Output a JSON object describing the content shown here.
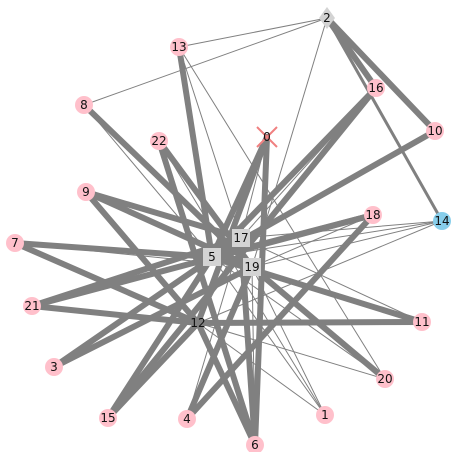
{
  "graph": {
    "nodes": [
      {
        "id": "0",
        "label": "0",
        "shape": "x-marker",
        "color": "#f08080"
      },
      {
        "id": "1",
        "label": "1",
        "shape": "circle",
        "color": "#ffc0cb"
      },
      {
        "id": "2",
        "label": "2",
        "shape": "diamond",
        "color": "#d3d3d3"
      },
      {
        "id": "3",
        "label": "3",
        "shape": "circle",
        "color": "#ffc0cb"
      },
      {
        "id": "4",
        "label": "4",
        "shape": "circle",
        "color": "#ffc0cb"
      },
      {
        "id": "5",
        "label": "5",
        "shape": "square",
        "color": "#d3d3d3"
      },
      {
        "id": "6",
        "label": "6",
        "shape": "circle",
        "color": "#ffc0cb"
      },
      {
        "id": "7",
        "label": "7",
        "shape": "circle",
        "color": "#ffc0cb"
      },
      {
        "id": "8",
        "label": "8",
        "shape": "circle",
        "color": "#ffc0cb"
      },
      {
        "id": "9",
        "label": "9",
        "shape": "circle",
        "color": "#ffc0cb"
      },
      {
        "id": "10",
        "label": "10",
        "shape": "circle",
        "color": "#ffc0cb"
      },
      {
        "id": "11",
        "label": "11",
        "shape": "circle",
        "color": "#ffc0cb"
      },
      {
        "id": "12",
        "label": "12",
        "shape": "none",
        "color": "#d3d3d3"
      },
      {
        "id": "13",
        "label": "13",
        "shape": "circle",
        "color": "#ffc0cb"
      },
      {
        "id": "14",
        "label": "14",
        "shape": "circle",
        "color": "#87ceeb"
      },
      {
        "id": "15",
        "label": "15",
        "shape": "circle",
        "color": "#ffc0cb"
      },
      {
        "id": "16",
        "label": "16",
        "shape": "circle",
        "color": "#ffc0cb"
      },
      {
        "id": "17",
        "label": "17",
        "shape": "square",
        "color": "#d3d3d3"
      },
      {
        "id": "18",
        "label": "18",
        "shape": "circle",
        "color": "#ffc0cb"
      },
      {
        "id": "19",
        "label": "19",
        "shape": "square",
        "color": "#d3d3d3"
      },
      {
        "id": "20",
        "label": "20",
        "shape": "circle",
        "color": "#ffc0cb"
      },
      {
        "id": "21",
        "label": "21",
        "shape": "circle",
        "color": "#ffc0cb"
      },
      {
        "id": "22",
        "label": "22",
        "shape": "circle",
        "color": "#ffc0cb"
      }
    ],
    "edges": [
      {
        "source": "2",
        "target": "16",
        "weight": "heavy"
      },
      {
        "source": "2",
        "target": "10",
        "weight": "heavy"
      },
      {
        "source": "2",
        "target": "14",
        "weight": "medium"
      },
      {
        "source": "2",
        "target": "13",
        "weight": "light"
      },
      {
        "source": "2",
        "target": "8",
        "weight": "light"
      },
      {
        "source": "2",
        "target": "19",
        "weight": "light"
      },
      {
        "source": "13",
        "target": "5",
        "weight": "heavy"
      },
      {
        "source": "13",
        "target": "17",
        "weight": "light"
      },
      {
        "source": "13",
        "target": "20",
        "weight": "light"
      },
      {
        "source": "8",
        "target": "19",
        "weight": "heavy"
      },
      {
        "source": "8",
        "target": "5",
        "weight": "light"
      },
      {
        "source": "22",
        "target": "19",
        "weight": "heavy"
      },
      {
        "source": "22",
        "target": "6",
        "weight": "heavy"
      },
      {
        "source": "22",
        "target": "1",
        "weight": "light"
      },
      {
        "source": "0",
        "target": "12",
        "weight": "heavy"
      },
      {
        "source": "0",
        "target": "6",
        "weight": "heavy"
      },
      {
        "source": "0",
        "target": "5",
        "weight": "heavy"
      },
      {
        "source": "0",
        "target": "17",
        "weight": "light"
      },
      {
        "source": "16",
        "target": "15",
        "weight": "heavy"
      },
      {
        "source": "16",
        "target": "5",
        "weight": "heavy"
      },
      {
        "source": "16",
        "target": "17",
        "weight": "light"
      },
      {
        "source": "10",
        "target": "5",
        "weight": "heavy"
      },
      {
        "source": "10",
        "target": "17",
        "weight": "light"
      },
      {
        "source": "9",
        "target": "17",
        "weight": "heavy"
      },
      {
        "source": "9",
        "target": "12",
        "weight": "heavy"
      },
      {
        "source": "9",
        "target": "19",
        "weight": "heavy"
      },
      {
        "source": "18",
        "target": "21",
        "weight": "heavy"
      },
      {
        "source": "18",
        "target": "5",
        "weight": "heavy"
      },
      {
        "source": "18",
        "target": "4",
        "weight": "heavy"
      },
      {
        "source": "18",
        "target": "19",
        "weight": "light"
      },
      {
        "source": "14",
        "target": "5",
        "weight": "light"
      },
      {
        "source": "14",
        "target": "12",
        "weight": "light"
      },
      {
        "source": "14",
        "target": "17",
        "weight": "light"
      },
      {
        "source": "14",
        "target": "19",
        "weight": "light"
      },
      {
        "source": "7",
        "target": "12",
        "weight": "heavy"
      },
      {
        "source": "7",
        "target": "5",
        "weight": "heavy"
      },
      {
        "source": "7",
        "target": "19",
        "weight": "light"
      },
      {
        "source": "21",
        "target": "17",
        "weight": "heavy"
      },
      {
        "source": "21",
        "target": "5",
        "weight": "light"
      },
      {
        "source": "21",
        "target": "12",
        "weight": "heavy"
      },
      {
        "source": "12",
        "target": "11",
        "weight": "heavy"
      },
      {
        "source": "12",
        "target": "6",
        "weight": "heavy"
      },
      {
        "source": "12",
        "target": "15",
        "weight": "heavy"
      },
      {
        "source": "12",
        "target": "1",
        "weight": "light"
      },
      {
        "source": "12",
        "target": "20",
        "weight": "light"
      },
      {
        "source": "12",
        "target": "17",
        "weight": "light"
      },
      {
        "source": "17",
        "target": "3",
        "weight": "heavy"
      },
      {
        "source": "17",
        "target": "6",
        "weight": "heavy"
      },
      {
        "source": "17",
        "target": "11",
        "weight": "light"
      },
      {
        "source": "5",
        "target": "11",
        "weight": "heavy"
      },
      {
        "source": "5",
        "target": "20",
        "weight": "light"
      },
      {
        "source": "5",
        "target": "15",
        "weight": "heavy"
      },
      {
        "source": "5",
        "target": "1",
        "weight": "light"
      },
      {
        "source": "19",
        "target": "3",
        "weight": "heavy"
      },
      {
        "source": "19",
        "target": "20",
        "weight": "heavy"
      },
      {
        "source": "19",
        "target": "4",
        "weight": "heavy"
      },
      {
        "source": "19",
        "target": "1",
        "weight": "light"
      },
      {
        "source": "19",
        "target": "11",
        "weight": "light"
      },
      {
        "source": "19",
        "target": "6",
        "weight": "light"
      },
      {
        "source": "4",
        "target": "17",
        "weight": "light"
      }
    ]
  },
  "style": {
    "edge_color": "#808080",
    "background": "#ffffff"
  }
}
